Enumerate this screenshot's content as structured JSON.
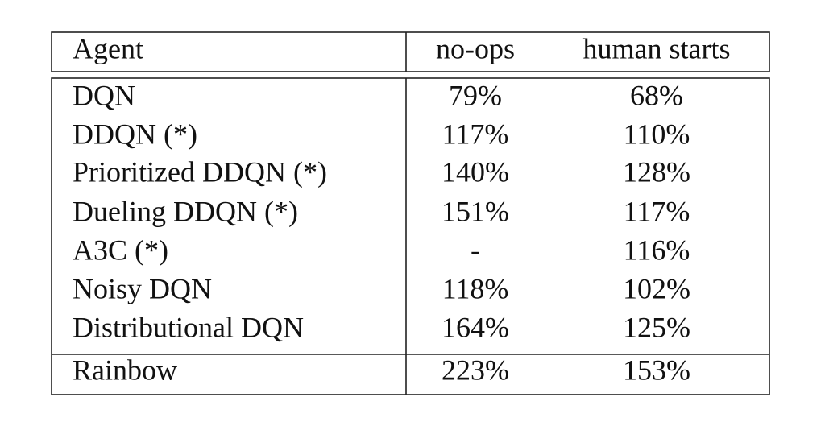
{
  "table": {
    "header": [
      "Agent",
      "no-ops",
      "human starts"
    ],
    "rows": [
      [
        "DQN",
        "79%",
        "68%"
      ],
      [
        "DDQN (*)",
        "117%",
        "110%"
      ],
      [
        "Prioritized DDQN (*)",
        "140%",
        "128%"
      ],
      [
        "Dueling DDQN (*)",
        "151%",
        "117%"
      ],
      [
        "A3C (*)",
        "-",
        "116%"
      ],
      [
        "Noisy DQN",
        "118%",
        "102%"
      ],
      [
        "Distributional DQN",
        "164%",
        "125%"
      ],
      [
        "Rainbow",
        "223%",
        "153%"
      ]
    ]
  }
}
